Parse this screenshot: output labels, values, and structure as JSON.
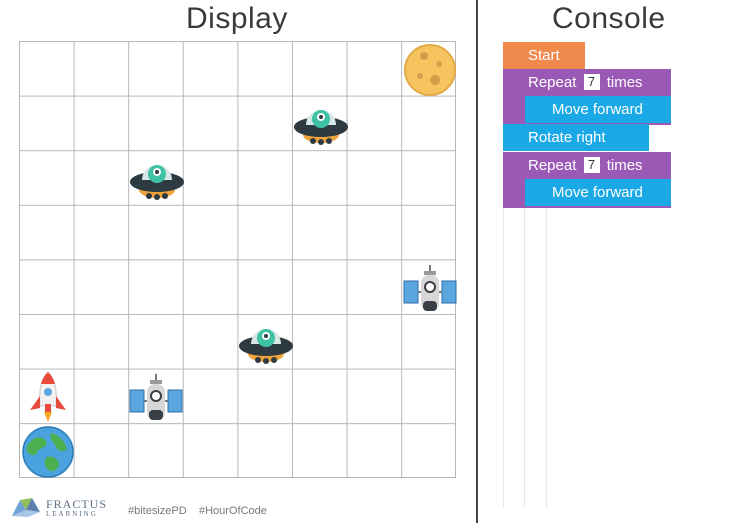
{
  "display": {
    "title": "Display"
  },
  "console": {
    "title": "Console",
    "blocks": [
      {
        "type": "start",
        "label": "Start"
      },
      {
        "type": "repeat",
        "prefix": "Repeat",
        "count": "7",
        "suffix": "times"
      },
      {
        "type": "action",
        "label": "Move forward"
      },
      {
        "type": "action",
        "label": "Rotate right"
      },
      {
        "type": "repeat",
        "prefix": "Repeat",
        "count": "7",
        "suffix": "times"
      },
      {
        "type": "action",
        "label": "Move forward"
      }
    ]
  },
  "grid": {
    "rows": 8,
    "cols": 8,
    "sprites": [
      {
        "icon": "moon-icon",
        "row": 1,
        "col": 8
      },
      {
        "icon": "alien-ufo-icon",
        "row": 2,
        "col": 6
      },
      {
        "icon": "alien-ufo-icon",
        "row": 3,
        "col": 3
      },
      {
        "icon": "satellite-icon",
        "row": 5,
        "col": 8
      },
      {
        "icon": "alien-ufo-icon",
        "row": 6,
        "col": 5
      },
      {
        "icon": "rocket-icon",
        "row": 7,
        "col": 1
      },
      {
        "icon": "satellite-icon",
        "row": 7,
        "col": 3
      },
      {
        "icon": "earth-icon",
        "row": 8,
        "col": 1
      }
    ]
  },
  "footer": {
    "logo_top": "FRACTUS",
    "logo_bottom": "LEARNING",
    "hashtag1": "#bitesizePD",
    "hashtag2": "#HourOfCode"
  },
  "colors": {
    "start": "#ef8a4c",
    "repeat": "#9b59b6",
    "action": "#1ba8e6"
  }
}
